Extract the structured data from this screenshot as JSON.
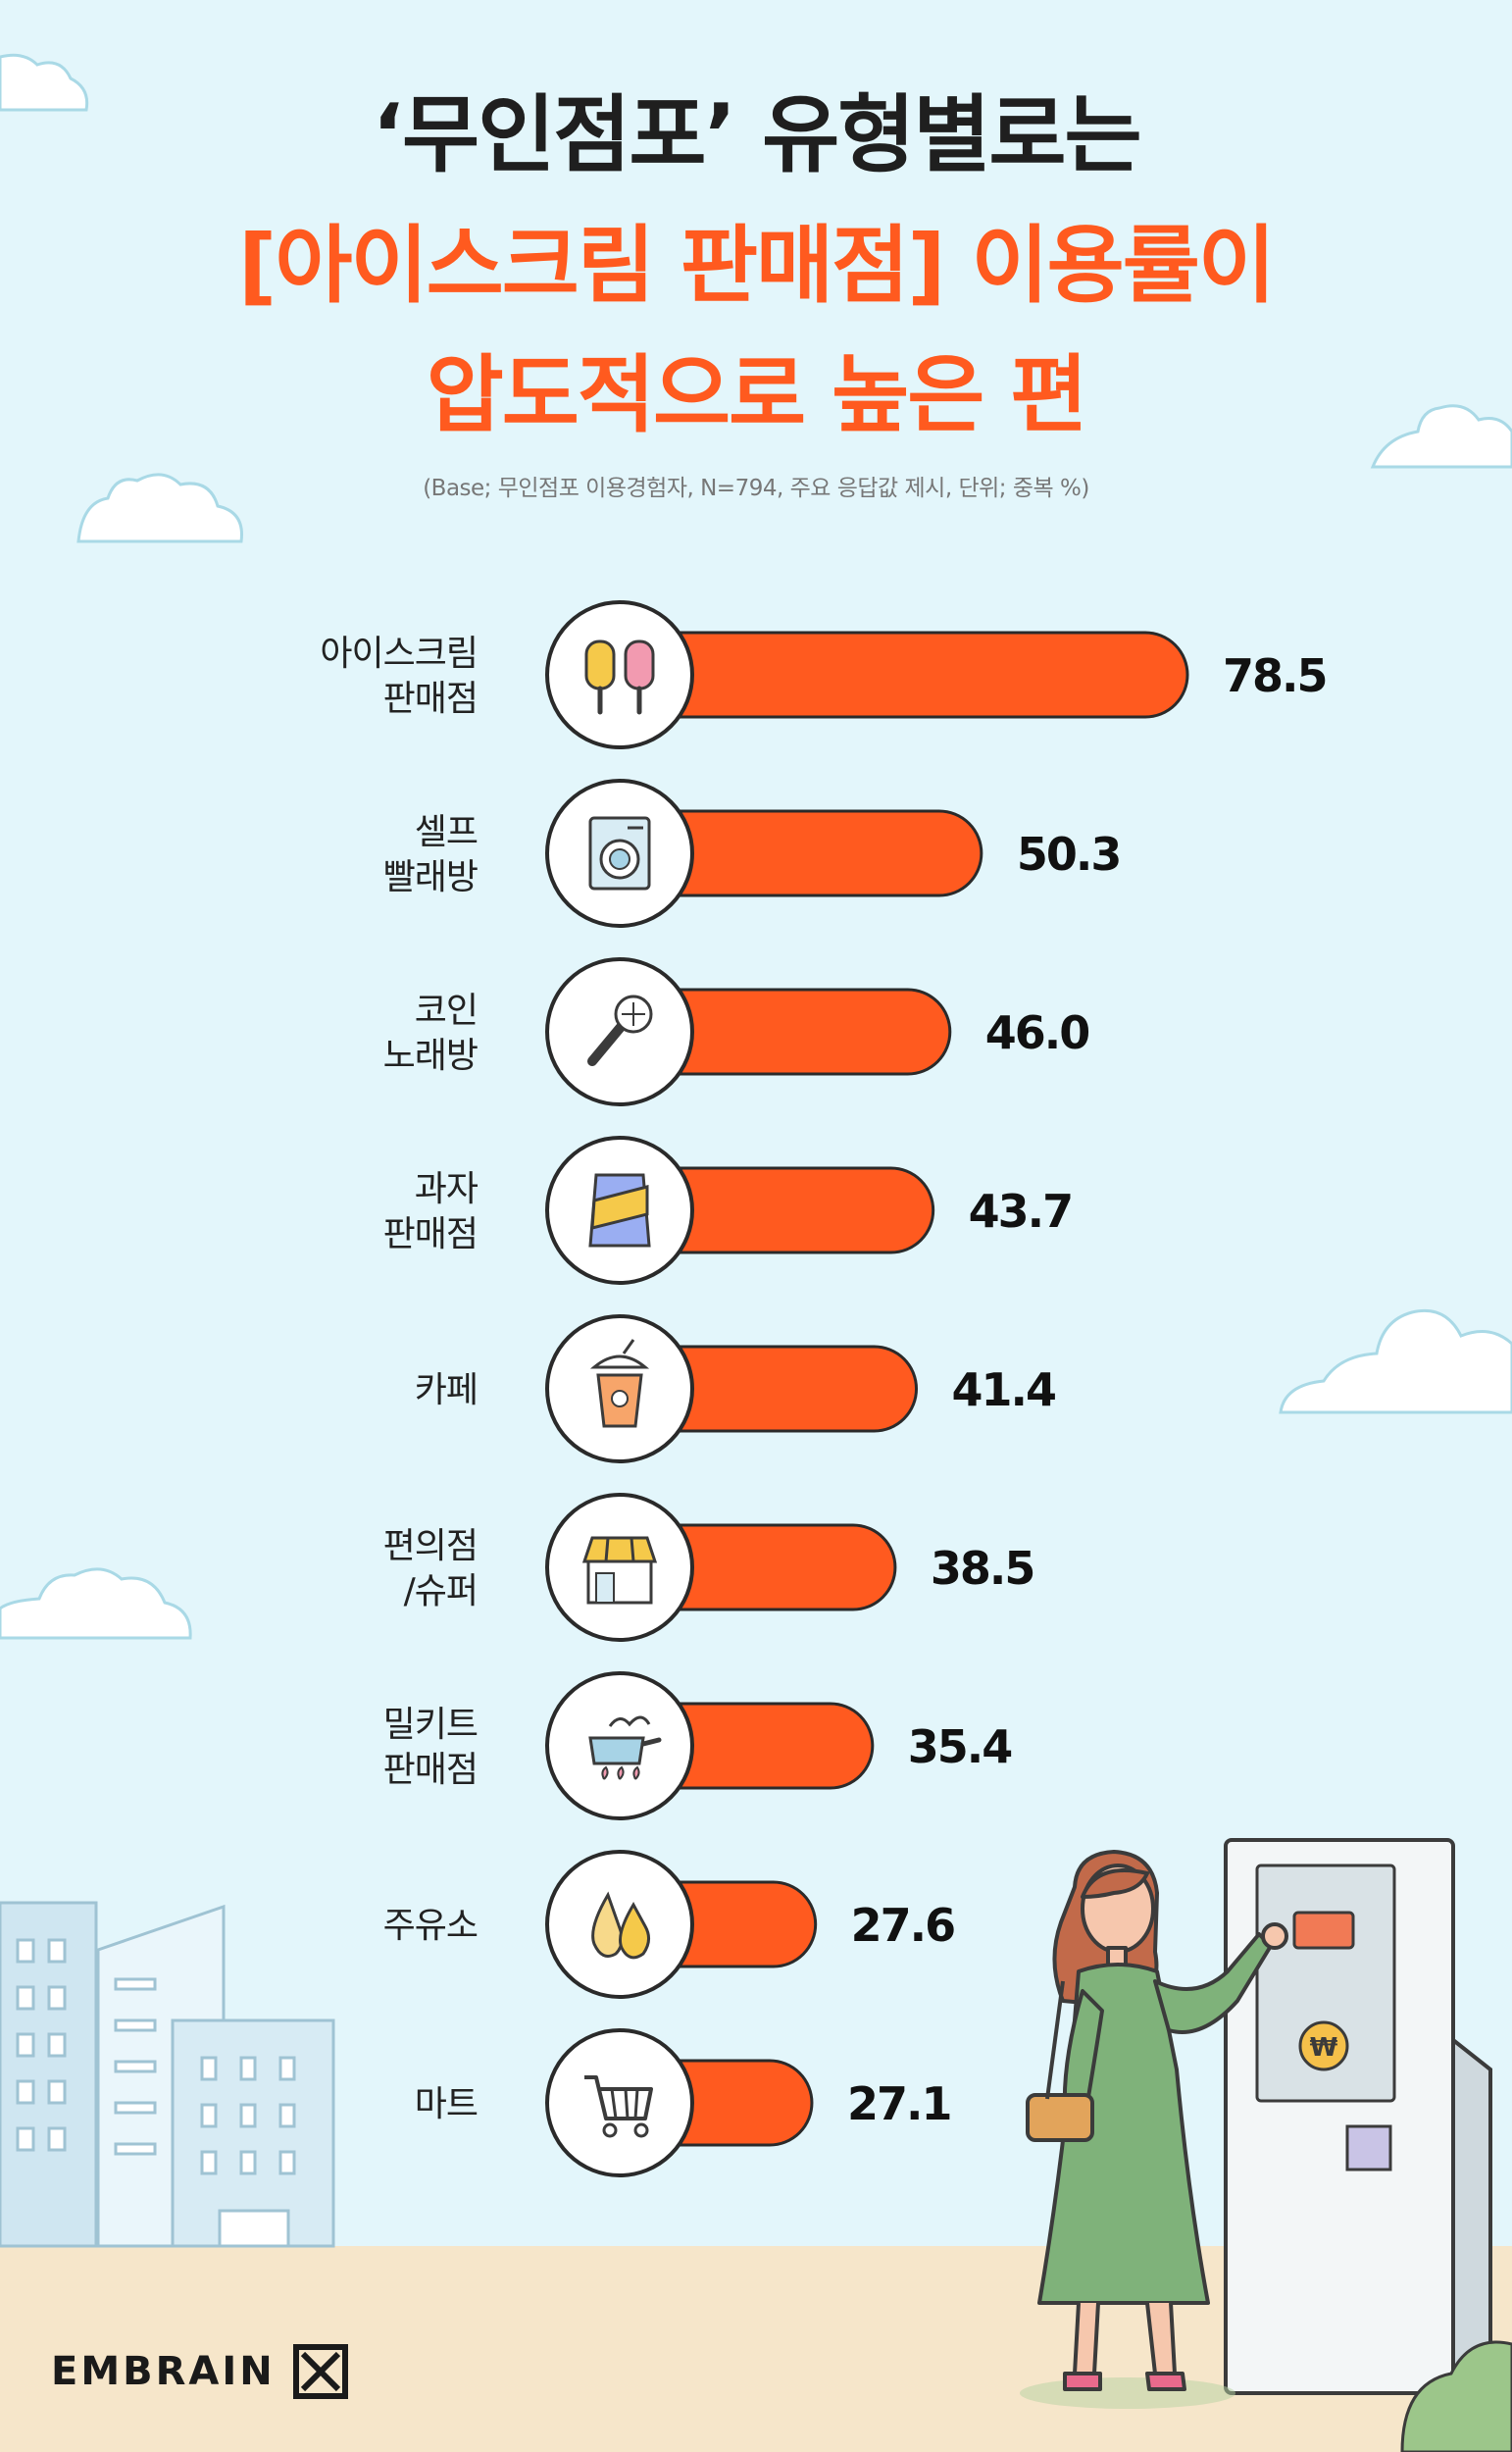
{
  "title": {
    "line1": "‘무인점포’ 유형별로는",
    "line2": "[아이스크림 판매점] 이용률이",
    "line3": "압도적으로 높은 편"
  },
  "subtitle": "(Base; 무인점포 이용경험자, N=794, 주요 응답값 제시, 단위; 중복 %)",
  "brand": "EMBRAIN",
  "colors": {
    "bar": "#ff5a1f",
    "title_accent": "#ff5a1f",
    "background": "#e3f6fb",
    "ground": "#f6e6ca"
  },
  "chart_data": {
    "type": "bar",
    "orientation": "horizontal",
    "title": "‘무인점포’ 유형별로는 [아이스크림 판매점] 이용률이 압도적으로 높은 편",
    "categories": [
      [
        "아이스크림",
        "판매점"
      ],
      [
        "셀프",
        "빨래방"
      ],
      [
        "코인",
        "노래방"
      ],
      [
        "과자",
        "판매점"
      ],
      [
        "카페"
      ],
      [
        "편의점",
        "/슈퍼"
      ],
      [
        "밀키트",
        "판매점"
      ],
      [
        "주유소"
      ],
      [
        "마트"
      ]
    ],
    "values": [
      78.5,
      50.3,
      46.0,
      43.7,
      41.4,
      38.5,
      35.4,
      27.6,
      27.1
    ],
    "value_labels": [
      "78.5",
      "50.3",
      "46.0",
      "43.7",
      "41.4",
      "38.5",
      "35.4",
      "27.6",
      "27.1"
    ],
    "icons": [
      "popsicle-icon",
      "washing-machine-icon",
      "microphone-icon",
      "snack-bag-icon",
      "drink-cup-icon",
      "storefront-icon",
      "cooking-pot-icon",
      "fuel-drops-icon",
      "shopping-cart-icon"
    ],
    "unit": "%",
    "grid": false,
    "legend": "none"
  }
}
